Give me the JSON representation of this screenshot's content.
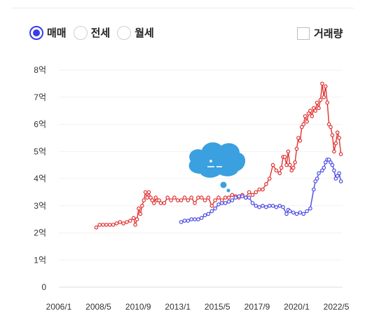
{
  "tabs": [
    {
      "label": "매매",
      "selected": true
    },
    {
      "label": "전세",
      "selected": false
    },
    {
      "label": "월세",
      "selected": false
    }
  ],
  "volume_toggle": {
    "label": "거래량",
    "checked": false
  },
  "colors": {
    "sale": "#e03131",
    "jeonse": "#4a4be0",
    "accent": "#3a3ce8",
    "cloud": "#3aa0e0"
  },
  "chart_data": {
    "type": "line",
    "x_unit": "year",
    "x_range": [
      2006.0,
      2022.7
    ],
    "y_range": [
      0,
      8
    ],
    "y_ticks": [
      "0",
      "1억",
      "2억",
      "3억",
      "4억",
      "5억",
      "6억",
      "7억",
      "8억"
    ],
    "x_ticks": [
      "2006/1",
      "2008/5",
      "2010/9",
      "2013/1",
      "2015/5",
      "2017/9",
      "2020/1",
      "2022/5"
    ],
    "x_tick_values": [
      2006.0,
      2008.33,
      2010.67,
      2013.0,
      2015.33,
      2017.67,
      2020.0,
      2022.33
    ],
    "grid": true,
    "series": [
      {
        "key": "sale",
        "color": "#e03131",
        "points": [
          [
            2008.2,
            2.2
          ],
          [
            2008.4,
            2.3
          ],
          [
            2008.6,
            2.3
          ],
          [
            2008.8,
            2.3
          ],
          [
            2009.0,
            2.3
          ],
          [
            2009.2,
            2.3
          ],
          [
            2009.4,
            2.35
          ],
          [
            2009.6,
            2.4
          ],
          [
            2009.8,
            2.35
          ],
          [
            2010.0,
            2.4
          ],
          [
            2010.2,
            2.45
          ],
          [
            2010.4,
            2.55
          ],
          [
            2010.5,
            2.3
          ],
          [
            2010.6,
            2.5
          ],
          [
            2010.7,
            2.9
          ],
          [
            2010.8,
            2.7
          ],
          [
            2010.9,
            3.0
          ],
          [
            2011.0,
            3.2
          ],
          [
            2011.1,
            3.5
          ],
          [
            2011.2,
            3.3
          ],
          [
            2011.3,
            3.5
          ],
          [
            2011.4,
            3.3
          ],
          [
            2011.5,
            3.2
          ],
          [
            2011.6,
            3.1
          ],
          [
            2011.7,
            3.3
          ],
          [
            2011.8,
            3.2
          ],
          [
            2011.9,
            3.2
          ],
          [
            2012.0,
            3.1
          ],
          [
            2012.2,
            3.1
          ],
          [
            2012.4,
            3.3
          ],
          [
            2012.6,
            3.2
          ],
          [
            2012.8,
            3.3
          ],
          [
            2013.0,
            3.2
          ],
          [
            2013.2,
            3.2
          ],
          [
            2013.4,
            3.3
          ],
          [
            2013.6,
            3.2
          ],
          [
            2013.8,
            3.3
          ],
          [
            2014.0,
            3.1
          ],
          [
            2014.2,
            3.3
          ],
          [
            2014.4,
            3.3
          ],
          [
            2014.6,
            3.2
          ],
          [
            2014.8,
            3.3
          ],
          [
            2015.0,
            3.0
          ],
          [
            2015.2,
            3.2
          ],
          [
            2015.4,
            3.3
          ],
          [
            2015.6,
            3.2
          ],
          [
            2015.8,
            3.3
          ],
          [
            2016.0,
            3.3
          ],
          [
            2016.2,
            3.4
          ],
          [
            2016.4,
            3.35
          ],
          [
            2016.6,
            3.3
          ],
          [
            2016.8,
            3.4
          ],
          [
            2017.0,
            3.3
          ],
          [
            2017.2,
            3.5
          ],
          [
            2017.4,
            3.4
          ],
          [
            2017.6,
            3.5
          ],
          [
            2017.8,
            3.6
          ],
          [
            2018.0,
            3.6
          ],
          [
            2018.2,
            3.8
          ],
          [
            2018.4,
            4.0
          ],
          [
            2018.6,
            4.5
          ],
          [
            2018.8,
            4.3
          ],
          [
            2019.0,
            4.2
          ],
          [
            2019.1,
            4.4
          ],
          [
            2019.2,
            4.8
          ],
          [
            2019.3,
            4.8
          ],
          [
            2019.4,
            4.5
          ],
          [
            2019.5,
            5.0
          ],
          [
            2019.6,
            4.5
          ],
          [
            2019.7,
            4.3
          ],
          [
            2019.8,
            4.4
          ],
          [
            2019.9,
            4.6
          ],
          [
            2020.0,
            5.1
          ],
          [
            2020.1,
            5.5
          ],
          [
            2020.2,
            5.4
          ],
          [
            2020.3,
            5.9
          ],
          [
            2020.4,
            6.0
          ],
          [
            2020.5,
            6.3
          ],
          [
            2020.6,
            6.1
          ],
          [
            2020.7,
            6.4
          ],
          [
            2020.8,
            6.5
          ],
          [
            2020.9,
            6.3
          ],
          [
            2021.0,
            6.6
          ],
          [
            2021.1,
            6.5
          ],
          [
            2021.2,
            6.8
          ],
          [
            2021.3,
            6.6
          ],
          [
            2021.4,
            6.9
          ],
          [
            2021.5,
            7.5
          ],
          [
            2021.6,
            7.0
          ],
          [
            2021.7,
            7.4
          ],
          [
            2021.8,
            6.8
          ],
          [
            2021.9,
            6.0
          ],
          [
            2022.0,
            5.9
          ],
          [
            2022.1,
            5.6
          ],
          [
            2022.2,
            5.0
          ],
          [
            2022.3,
            5.3
          ],
          [
            2022.4,
            5.7
          ],
          [
            2022.5,
            5.5
          ],
          [
            2022.6,
            4.9
          ]
        ]
      },
      {
        "key": "jeonse",
        "color": "#4a4be0",
        "points": [
          [
            2013.2,
            2.4
          ],
          [
            2013.4,
            2.45
          ],
          [
            2013.6,
            2.45
          ],
          [
            2013.8,
            2.5
          ],
          [
            2014.0,
            2.5
          ],
          [
            2014.2,
            2.5
          ],
          [
            2014.4,
            2.55
          ],
          [
            2014.6,
            2.65
          ],
          [
            2014.8,
            2.7
          ],
          [
            2015.0,
            2.8
          ],
          [
            2015.2,
            2.9
          ],
          [
            2015.4,
            3.05
          ],
          [
            2015.6,
            3.1
          ],
          [
            2015.8,
            3.1
          ],
          [
            2016.0,
            3.15
          ],
          [
            2016.2,
            3.2
          ],
          [
            2016.4,
            3.3
          ],
          [
            2016.6,
            3.35
          ],
          [
            2016.8,
            3.35
          ],
          [
            2017.0,
            3.3
          ],
          [
            2017.2,
            3.3
          ],
          [
            2017.4,
            3.1
          ],
          [
            2017.6,
            3.0
          ],
          [
            2017.8,
            2.95
          ],
          [
            2018.0,
            3.0
          ],
          [
            2018.2,
            2.95
          ],
          [
            2018.4,
            3.0
          ],
          [
            2018.6,
            3.0
          ],
          [
            2018.8,
            2.95
          ],
          [
            2019.0,
            3.0
          ],
          [
            2019.2,
            2.95
          ],
          [
            2019.4,
            2.7
          ],
          [
            2019.5,
            2.85
          ],
          [
            2019.6,
            2.8
          ],
          [
            2019.8,
            2.75
          ],
          [
            2020.0,
            2.7
          ],
          [
            2020.2,
            2.75
          ],
          [
            2020.4,
            2.7
          ],
          [
            2020.6,
            2.8
          ],
          [
            2020.8,
            2.9
          ],
          [
            2021.0,
            3.6
          ],
          [
            2021.1,
            3.9
          ],
          [
            2021.2,
            4.0
          ],
          [
            2021.3,
            4.2
          ],
          [
            2021.5,
            4.3
          ],
          [
            2021.6,
            4.4
          ],
          [
            2021.7,
            4.6
          ],
          [
            2021.8,
            4.7
          ],
          [
            2021.9,
            4.7
          ],
          [
            2022.0,
            4.6
          ],
          [
            2022.1,
            4.5
          ],
          [
            2022.2,
            4.3
          ],
          [
            2022.3,
            4.0
          ],
          [
            2022.4,
            4.1
          ],
          [
            2022.5,
            4.2
          ],
          [
            2022.6,
            3.9
          ]
        ]
      }
    ]
  }
}
